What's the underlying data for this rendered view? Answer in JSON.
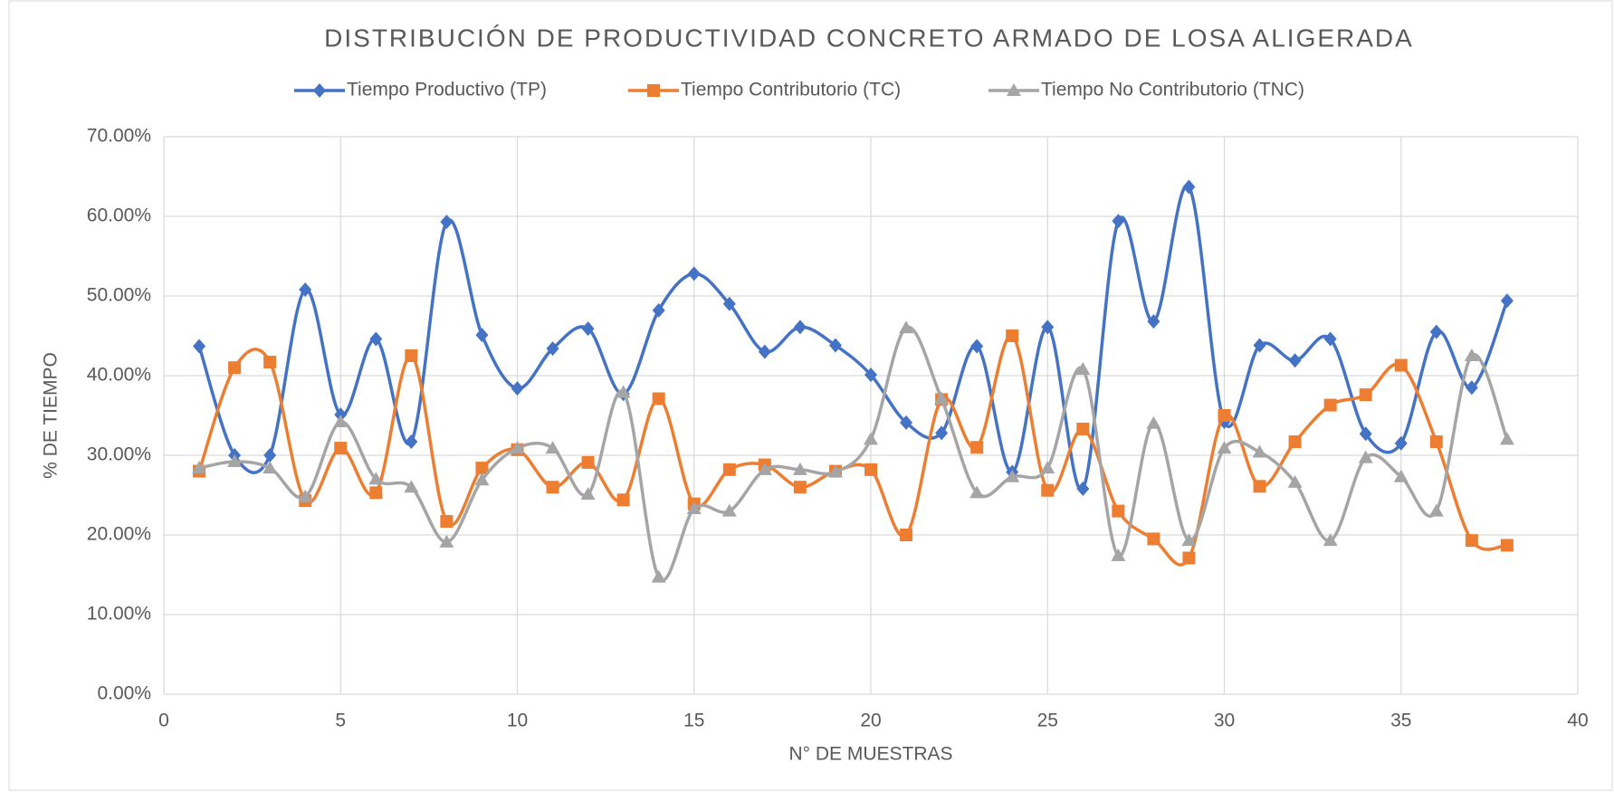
{
  "chart_data": {
    "type": "line",
    "title": "DISTRIBUCIÓN DE PRODUCTIVIDAD CONCRETO ARMADO DE LOSA ALIGERADA",
    "x_label": "N° DE MUESTRAS",
    "y_label": "% DE TIEMPO",
    "smooth": true,
    "grid": true,
    "legend": "top",
    "x": [
      1,
      2,
      3,
      4,
      5,
      6,
      7,
      8,
      9,
      10,
      11,
      12,
      13,
      14,
      15,
      16,
      17,
      18,
      19,
      20,
      21,
      22,
      23,
      24,
      25,
      26,
      27,
      28,
      29,
      30,
      31,
      32,
      33,
      34,
      35,
      36,
      37,
      38
    ],
    "series": [
      {
        "name": "Tiempo Productivo (TP)",
        "color": "#4472c4",
        "marker": "diamond",
        "values": [
          43.7,
          30.0,
          30.0,
          50.8,
          35.1,
          44.6,
          31.7,
          59.3,
          45.1,
          38.4,
          43.4,
          45.9,
          37.7,
          48.2,
          52.8,
          49.0,
          43.0,
          46.1,
          43.8,
          40.1,
          34.1,
          32.8,
          43.7,
          27.9,
          46.1,
          25.8,
          59.4,
          46.8,
          63.7,
          34.2,
          43.8,
          41.9,
          44.6,
          32.7,
          31.5,
          45.5,
          38.5,
          49.4
        ]
      },
      {
        "name": "Tiempo Contributorio (TC)",
        "color": "#ed7d31",
        "marker": "square",
        "values": [
          28.0,
          41.0,
          41.7,
          24.3,
          30.9,
          25.3,
          42.5,
          21.7,
          28.4,
          30.7,
          26.0,
          29.1,
          24.4,
          37.1,
          23.9,
          28.2,
          28.8,
          26.0,
          28.0,
          28.2,
          20.0,
          37.0,
          31.0,
          45.0,
          25.6,
          33.3,
          23.0,
          19.5,
          17.1,
          35.0,
          26.1,
          31.7,
          36.3,
          37.6,
          41.3,
          31.7,
          19.3,
          18.7
        ]
      },
      {
        "name": "Tiempo No Contributorio (TNC)",
        "color": "#a5a5a5",
        "marker": "triangle",
        "values": [
          28.4,
          29.2,
          28.4,
          24.8,
          34.2,
          27.0,
          26.0,
          19.1,
          26.9,
          30.9,
          30.9,
          25.1,
          37.9,
          14.7,
          23.3,
          23.0,
          28.2,
          28.2,
          27.9,
          32.0,
          46.0,
          37.1,
          25.3,
          27.3,
          28.4,
          40.8,
          17.4,
          34.0,
          19.3,
          30.9,
          30.4,
          26.6,
          19.3,
          29.7,
          27.3,
          23.0,
          42.5,
          32.0
        ]
      }
    ],
    "xlim": [
      0,
      40
    ],
    "xticks": [
      0,
      5,
      10,
      15,
      20,
      25,
      30,
      35,
      40
    ],
    "ylim": [
      0,
      70
    ],
    "yticks": [
      {
        "value": 0,
        "label": "0.00%"
      },
      {
        "value": 10,
        "label": "10.00%"
      },
      {
        "value": 20,
        "label": "20.00%"
      },
      {
        "value": 30,
        "label": "30.00%"
      },
      {
        "value": 40,
        "label": "40.00%"
      },
      {
        "value": 50,
        "label": "50.00%"
      },
      {
        "value": 60,
        "label": "60.00%"
      },
      {
        "value": 70,
        "label": "70.00%"
      }
    ]
  }
}
